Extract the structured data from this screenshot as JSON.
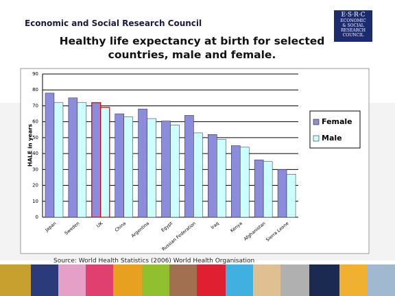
{
  "header": {
    "org": "Economic and Social Research Council"
  },
  "logo": {
    "lines": [
      "E·S·R·C",
      "ECONOMIC",
      "& SOCIAL",
      "RESEARCH",
      "COUNCIL"
    ]
  },
  "source": "Source: World Health Statistics (2006) World Health Organisation",
  "chart_data": {
    "type": "bar",
    "title": "Healthy life expectancy at birth for selected countries, male and female.",
    "y_label": "HALE in years",
    "categories": [
      "Japan",
      "Sweden",
      "UK",
      "China",
      "Argentina",
      "Egypt",
      "Russian Federation",
      "Iraq",
      "Kenya",
      "Afghanistan",
      "Sierra Leone"
    ],
    "series": [
      {
        "name": "Female",
        "color": "#8c8cdc",
        "values": [
          78,
          75,
          72,
          65,
          68,
          60.5,
          64,
          52,
          45,
          36,
          30
        ]
      },
      {
        "name": "Male",
        "color": "#ccffff",
        "values": [
          72,
          72,
          69,
          63,
          62,
          58,
          53,
          49,
          44,
          35,
          27
        ]
      }
    ],
    "highlight_category": "UK",
    "highlight_color": "#cc0000",
    "ylim": [
      0,
      90
    ],
    "yticks": [
      0,
      10,
      20,
      30,
      40,
      50,
      60,
      70,
      80,
      90
    ],
    "grid": true,
    "legend": "right"
  }
}
